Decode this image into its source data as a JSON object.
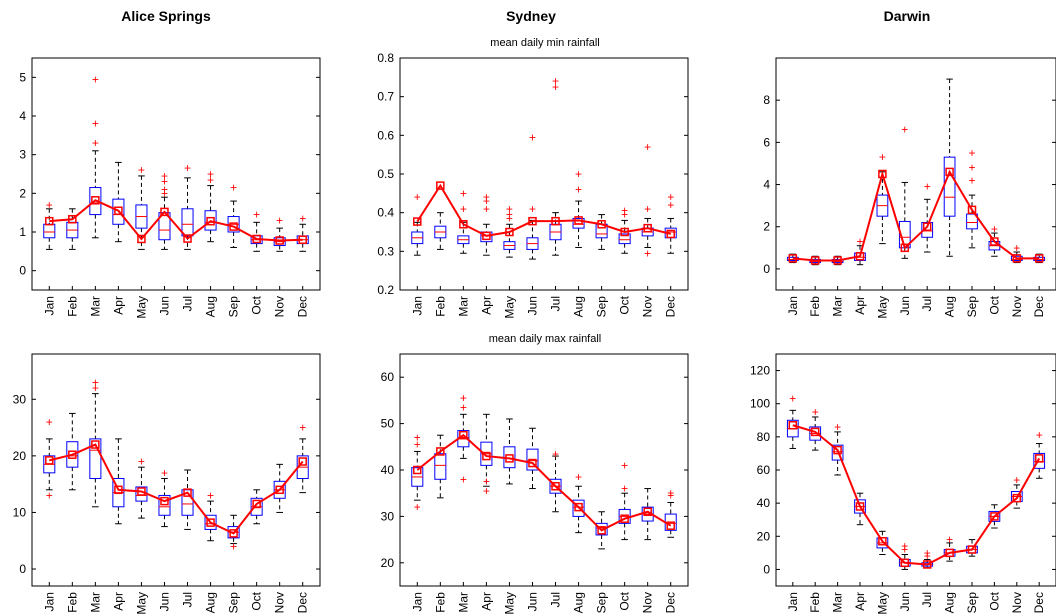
{
  "figure": {
    "row_titles": [
      "mean daily min rainfall",
      "mean daily max rainfall"
    ],
    "col_titles": [
      "Alice Springs",
      "Sydney",
      "Darwin"
    ]
  },
  "chart_data": [
    {
      "type": "box",
      "title": "Alice Springs",
      "subtitle": "",
      "categories": [
        "Jan",
        "Feb",
        "Mar",
        "Apr",
        "May",
        "Jun",
        "Jul",
        "Aug",
        "Sep",
        "Oct",
        "Nov",
        "Dec"
      ],
      "ylim": [
        -0.5,
        5.5
      ],
      "yticks": [
        0,
        1,
        2,
        3,
        4,
        5
      ],
      "boxes": [
        {
          "q1": 0.85,
          "median": 1.0,
          "q3": 1.2,
          "lo": 0.55,
          "hi": 1.6,
          "out": [
            1.7
          ]
        },
        {
          "q1": 0.85,
          "median": 1.05,
          "q3": 1.25,
          "lo": 0.55,
          "hi": 1.6,
          "out": []
        },
        {
          "q1": 1.45,
          "median": 1.75,
          "q3": 2.15,
          "lo": 0.85,
          "hi": 3.1,
          "out": [
            3.3,
            3.8,
            4.95
          ]
        },
        {
          "q1": 1.2,
          "median": 1.45,
          "q3": 1.85,
          "lo": 0.75,
          "hi": 2.8,
          "out": []
        },
        {
          "q1": 1.1,
          "median": 1.4,
          "q3": 1.7,
          "lo": 0.55,
          "hi": 2.45,
          "out": [
            2.6
          ]
        },
        {
          "q1": 0.8,
          "median": 1.05,
          "q3": 1.5,
          "lo": 0.55,
          "hi": 1.9,
          "out": [
            2.0,
            2.1,
            2.3,
            2.45
          ]
        },
        {
          "q1": 0.9,
          "median": 1.2,
          "q3": 1.6,
          "lo": 0.55,
          "hi": 2.4,
          "out": [
            2.65
          ]
        },
        {
          "q1": 1.05,
          "median": 1.25,
          "q3": 1.55,
          "lo": 0.75,
          "hi": 2.2,
          "out": [
            2.35,
            2.5
          ]
        },
        {
          "q1": 1.0,
          "median": 1.2,
          "q3": 1.4,
          "lo": 0.6,
          "hi": 1.8,
          "out": [
            2.15
          ]
        },
        {
          "q1": 0.7,
          "median": 0.8,
          "q3": 0.9,
          "lo": 0.5,
          "hi": 1.25,
          "out": [
            1.45
          ]
        },
        {
          "q1": 0.65,
          "median": 0.75,
          "q3": 0.85,
          "lo": 0.5,
          "hi": 1.1,
          "out": [
            1.3
          ]
        },
        {
          "q1": 0.7,
          "median": 0.8,
          "q3": 0.9,
          "lo": 0.5,
          "hi": 1.2,
          "out": [
            1.35
          ]
        }
      ],
      "means": [
        1.28,
        1.33,
        1.82,
        1.55,
        0.82,
        1.52,
        0.83,
        1.28,
        1.14,
        0.82,
        0.78,
        0.8
      ]
    },
    {
      "type": "box",
      "title": "Sydney",
      "subtitle": "mean daily min rainfall",
      "categories": [
        "Jan",
        "Feb",
        "Mar",
        "Apr",
        "May",
        "Jun",
        "Jul",
        "Aug",
        "Sep",
        "Oct",
        "Nov",
        "Dec"
      ],
      "ylim": [
        0.2,
        0.8
      ],
      "yticks": [
        0.2,
        0.3,
        0.4,
        0.5,
        0.6,
        0.7,
        0.8
      ],
      "boxes": [
        {
          "q1": 0.32,
          "median": 0.335,
          "q3": 0.35,
          "lo": 0.29,
          "hi": 0.375,
          "out": [
            0.44
          ]
        },
        {
          "q1": 0.335,
          "median": 0.35,
          "q3": 0.365,
          "lo": 0.305,
          "hi": 0.4,
          "out": []
        },
        {
          "q1": 0.32,
          "median": 0.33,
          "q3": 0.34,
          "lo": 0.295,
          "hi": 0.375,
          "out": [
            0.41,
            0.45
          ]
        },
        {
          "q1": 0.325,
          "median": 0.34,
          "q3": 0.35,
          "lo": 0.29,
          "hi": 0.37,
          "out": [
            0.41,
            0.43,
            0.44
          ]
        },
        {
          "q1": 0.305,
          "median": 0.315,
          "q3": 0.325,
          "lo": 0.285,
          "hi": 0.37,
          "out": [
            0.385,
            0.395,
            0.41
          ]
        },
        {
          "q1": 0.305,
          "median": 0.32,
          "q3": 0.335,
          "lo": 0.28,
          "hi": 0.38,
          "out": [
            0.41,
            0.595
          ]
        },
        {
          "q1": 0.33,
          "median": 0.35,
          "q3": 0.37,
          "lo": 0.29,
          "hi": 0.4,
          "out": [
            0.725,
            0.74
          ]
        },
        {
          "q1": 0.36,
          "median": 0.37,
          "q3": 0.385,
          "lo": 0.31,
          "hi": 0.43,
          "out": [
            0.46,
            0.5
          ]
        },
        {
          "q1": 0.335,
          "median": 0.345,
          "q3": 0.37,
          "lo": 0.305,
          "hi": 0.395,
          "out": []
        },
        {
          "q1": 0.32,
          "median": 0.33,
          "q3": 0.345,
          "lo": 0.295,
          "hi": 0.38,
          "out": [
            0.395,
            0.405
          ]
        },
        {
          "q1": 0.34,
          "median": 0.35,
          "q3": 0.36,
          "lo": 0.31,
          "hi": 0.385,
          "out": [
            0.295,
            0.41,
            0.57
          ]
        },
        {
          "q1": 0.335,
          "median": 0.35,
          "q3": 0.36,
          "lo": 0.295,
          "hi": 0.385,
          "out": [
            0.42,
            0.44
          ]
        }
      ],
      "means": [
        0.377,
        0.47,
        0.37,
        0.34,
        0.35,
        0.378,
        0.378,
        0.38,
        0.37,
        0.35,
        0.36,
        0.345
      ]
    },
    {
      "type": "box",
      "title": "Darwin",
      "subtitle": "",
      "categories": [
        "Jan",
        "Feb",
        "Mar",
        "Apr",
        "May",
        "Jun",
        "Jul",
        "Aug",
        "Sep",
        "Oct",
        "Nov",
        "Dec"
      ],
      "ylim": [
        -1,
        10
      ],
      "yticks": [
        0,
        2,
        4,
        6,
        8
      ],
      "boxes": [
        {
          "q1": 0.4,
          "median": 0.45,
          "q3": 0.55,
          "lo": 0.3,
          "hi": 0.7,
          "out": []
        },
        {
          "q1": 0.3,
          "median": 0.35,
          "q3": 0.45,
          "lo": 0.2,
          "hi": 0.6,
          "out": []
        },
        {
          "q1": 0.3,
          "median": 0.35,
          "q3": 0.45,
          "lo": 0.2,
          "hi": 0.6,
          "out": []
        },
        {
          "q1": 0.4,
          "median": 0.55,
          "q3": 0.75,
          "lo": 0.2,
          "hi": 1.1,
          "out": [
            1.3
          ]
        },
        {
          "q1": 2.5,
          "median": 3.0,
          "q3": 3.5,
          "lo": 1.2,
          "hi": 4.6,
          "out": [
            5.3
          ]
        },
        {
          "q1": 1.0,
          "median": 1.5,
          "q3": 2.25,
          "lo": 0.5,
          "hi": 4.1,
          "out": [
            6.6
          ]
        },
        {
          "q1": 1.5,
          "median": 1.8,
          "q3": 2.2,
          "lo": 0.8,
          "hi": 3.3,
          "out": [
            3.9
          ]
        },
        {
          "q1": 2.5,
          "median": 3.4,
          "q3": 5.3,
          "lo": 0.6,
          "hi": 9.0,
          "out": []
        },
        {
          "q1": 1.9,
          "median": 2.2,
          "q3": 2.6,
          "lo": 1.0,
          "hi": 3.5,
          "out": [
            4.2,
            4.8,
            5.5
          ]
        },
        {
          "q1": 0.9,
          "median": 1.1,
          "q3": 1.3,
          "lo": 0.6,
          "hi": 1.7,
          "out": [
            1.9
          ]
        },
        {
          "q1": 0.4,
          "median": 0.45,
          "q3": 0.6,
          "lo": 0.3,
          "hi": 0.8,
          "out": [
            1.0
          ]
        },
        {
          "q1": 0.4,
          "median": 0.45,
          "q3": 0.55,
          "lo": 0.3,
          "hi": 0.7,
          "out": []
        }
      ],
      "means": [
        0.5,
        0.4,
        0.4,
        0.6,
        4.5,
        1.0,
        2.0,
        4.6,
        2.8,
        1.3,
        0.5,
        0.5
      ]
    },
    {
      "type": "box",
      "title": "",
      "subtitle": "",
      "categories": [
        "Jan",
        "Feb",
        "Mar",
        "Apr",
        "May",
        "Jun",
        "Jul",
        "Aug",
        "Sep",
        "Oct",
        "Nov",
        "Dec"
      ],
      "ylim": [
        -3,
        38
      ],
      "yticks": [
        0,
        10,
        20,
        30
      ],
      "boxes": [
        {
          "q1": 17,
          "median": 18.5,
          "q3": 20,
          "lo": 14,
          "hi": 23,
          "out": [
            13,
            26
          ]
        },
        {
          "q1": 18,
          "median": 20,
          "q3": 22.5,
          "lo": 14,
          "hi": 27.5,
          "out": []
        },
        {
          "q1": 16,
          "median": 21,
          "q3": 23,
          "lo": 11,
          "hi": 31,
          "out": [
            32,
            33
          ]
        },
        {
          "q1": 11,
          "median": 13.5,
          "q3": 16,
          "lo": 8,
          "hi": 23,
          "out": []
        },
        {
          "q1": 12,
          "median": 13,
          "q3": 14.5,
          "lo": 9,
          "hi": 18,
          "out": [
            19
          ]
        },
        {
          "q1": 9.5,
          "median": 11,
          "q3": 13,
          "lo": 7.5,
          "hi": 16,
          "out": [
            17
          ]
        },
        {
          "q1": 9.5,
          "median": 11.5,
          "q3": 14,
          "lo": 7,
          "hi": 17.5,
          "out": []
        },
        {
          "q1": 7,
          "median": 8,
          "q3": 9.5,
          "lo": 5,
          "hi": 12,
          "out": [
            13
          ]
        },
        {
          "q1": 5.5,
          "median": 6.5,
          "q3": 7.5,
          "lo": 4.5,
          "hi": 9.5,
          "out": [
            4
          ]
        },
        {
          "q1": 9.5,
          "median": 11,
          "q3": 12.5,
          "lo": 8,
          "hi": 14,
          "out": []
        },
        {
          "q1": 12.5,
          "median": 14,
          "q3": 15.5,
          "lo": 10,
          "hi": 18.5,
          "out": []
        },
        {
          "q1": 16,
          "median": 18,
          "q3": 20,
          "lo": 13.5,
          "hi": 23,
          "out": [
            25
          ]
        }
      ],
      "means": [
        19.2,
        20.2,
        22,
        14,
        13.7,
        12,
        13.5,
        8.2,
        6.3,
        11.5,
        14,
        19
      ]
    },
    {
      "type": "box",
      "title": "",
      "subtitle": "",
      "categories": [
        "Jan",
        "Feb",
        "Mar",
        "Apr",
        "May",
        "Jun",
        "Jul",
        "Aug",
        "Sep",
        "Oct",
        "Nov",
        "Dec"
      ],
      "ylim": [
        15,
        65
      ],
      "yticks": [
        20,
        30,
        40,
        50,
        60
      ],
      "boxes": [
        {
          "q1": 36.5,
          "median": 38.5,
          "q3": 40.5,
          "lo": 33.5,
          "hi": 44,
          "out": [
            32,
            45.5,
            47
          ]
        },
        {
          "q1": 38,
          "median": 41,
          "q3": 43.5,
          "lo": 34,
          "hi": 47.5,
          "out": []
        },
        {
          "q1": 45,
          "median": 47,
          "q3": 48.5,
          "lo": 42.5,
          "hi": 52,
          "out": [
            38,
            55.5,
            53.5
          ]
        },
        {
          "q1": 41,
          "median": 43.5,
          "q3": 46,
          "lo": 36.5,
          "hi": 52,
          "out": [
            35.5,
            37.5
          ]
        },
        {
          "q1": 40.5,
          "median": 42.5,
          "q3": 45,
          "lo": 37,
          "hi": 51,
          "out": []
        },
        {
          "q1": 40,
          "median": 42,
          "q3": 44.5,
          "lo": 36,
          "hi": 49,
          "out": []
        },
        {
          "q1": 35,
          "median": 36.5,
          "q3": 38,
          "lo": 31,
          "hi": 43,
          "out": [
            43.5
          ]
        },
        {
          "q1": 30,
          "median": 32,
          "q3": 33.5,
          "lo": 26.5,
          "hi": 36.5,
          "out": [
            38.5
          ]
        },
        {
          "q1": 26,
          "median": 27.5,
          "q3": 28.5,
          "lo": 23,
          "hi": 31,
          "out": []
        },
        {
          "q1": 28.5,
          "median": 30,
          "q3": 31.5,
          "lo": 25,
          "hi": 35,
          "out": [
            36,
            41
          ]
        },
        {
          "q1": 29,
          "median": 30.5,
          "q3": 32,
          "lo": 25,
          "hi": 36,
          "out": []
        },
        {
          "q1": 27,
          "median": 28.5,
          "q3": 30.5,
          "lo": 25.5,
          "hi": 33,
          "out": [
            34.5,
            35
          ]
        }
      ],
      "means": [
        40,
        44,
        47.5,
        43,
        42.5,
        41.5,
        36.5,
        32,
        27,
        29.5,
        31,
        28
      ]
    },
    {
      "type": "box",
      "title": "",
      "subtitle": "",
      "categories": [
        "Jan",
        "Feb",
        "Mar",
        "Apr",
        "May",
        "Jun",
        "Jul",
        "Aug",
        "Sep",
        "Oct",
        "Nov",
        "Dec"
      ],
      "ylim": [
        -10,
        130
      ],
      "yticks": [
        0,
        20,
        40,
        60,
        80,
        100,
        120
      ],
      "boxes": [
        {
          "q1": 80,
          "median": 85,
          "q3": 90,
          "lo": 73,
          "hi": 96,
          "out": [
            103
          ]
        },
        {
          "q1": 78,
          "median": 82,
          "q3": 86,
          "lo": 72,
          "hi": 92,
          "out": [
            95
          ]
        },
        {
          "q1": 66,
          "median": 71,
          "q3": 75,
          "lo": 57,
          "hi": 83,
          "out": [
            86
          ]
        },
        {
          "q1": 34,
          "median": 38,
          "q3": 42,
          "lo": 27,
          "hi": 46,
          "out": []
        },
        {
          "q1": 13,
          "median": 16,
          "q3": 19,
          "lo": 9,
          "hi": 23,
          "out": []
        },
        {
          "q1": 2,
          "median": 4,
          "q3": 6,
          "lo": 0,
          "hi": 9,
          "out": [
            12,
            14
          ]
        },
        {
          "q1": 2,
          "median": 3,
          "q3": 4,
          "lo": 1,
          "hi": 6,
          "out": [
            8,
            10
          ]
        },
        {
          "q1": 8,
          "median": 10,
          "q3": 12,
          "lo": 5,
          "hi": 16,
          "out": [
            18
          ]
        },
        {
          "q1": 10,
          "median": 12,
          "q3": 14,
          "lo": 8,
          "hi": 18,
          "out": []
        },
        {
          "q1": 29,
          "median": 32,
          "q3": 35,
          "lo": 25,
          "hi": 39,
          "out": []
        },
        {
          "q1": 41,
          "median": 44,
          "q3": 47,
          "lo": 37,
          "hi": 51,
          "out": [
            54
          ]
        },
        {
          "q1": 61,
          "median": 65,
          "q3": 70,
          "lo": 55,
          "hi": 76,
          "out": [
            81
          ]
        }
      ],
      "means": [
        87,
        83,
        72,
        38,
        17,
        4,
        3,
        10,
        12,
        32,
        43,
        67
      ]
    }
  ]
}
